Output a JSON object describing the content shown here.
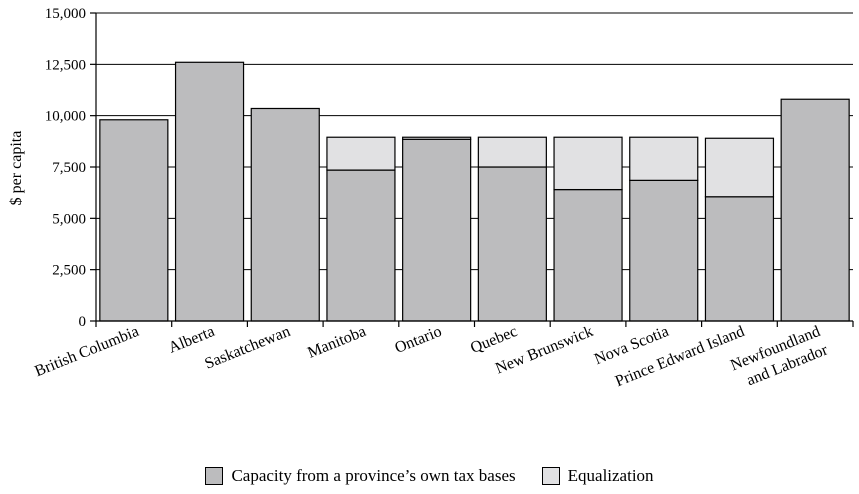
{
  "chart_data": {
    "type": "bar",
    "stacked": true,
    "title": "",
    "xlabel": "",
    "ylabel": "$ per capita",
    "ylim": [
      0,
      15000
    ],
    "yticks": [
      0,
      2500,
      5000,
      7500,
      10000,
      12500,
      15000
    ],
    "ytick_labels": [
      "0",
      "2,500",
      "5,000",
      "7,500",
      "10,000",
      "12,500",
      "15,000"
    ],
    "grid": "horizontal",
    "legend_position": "bottom",
    "categories": [
      "British Columbia",
      "Alberta",
      "Saskatchewan",
      "Manitoba",
      "Ontario",
      "Quebec",
      "New Brunswick",
      "Nova Scotia",
      "Prince Edward Island",
      "Newfoundland and Labrador"
    ],
    "category_label_lines": [
      [
        "British Columbia"
      ],
      [
        "Alberta"
      ],
      [
        "Saskatchewan"
      ],
      [
        "Manitoba"
      ],
      [
        "Ontario"
      ],
      [
        "Quebec"
      ],
      [
        "New Brunswick"
      ],
      [
        "Nova Scotia"
      ],
      [
        "Prince Edward Island"
      ],
      [
        "Newfoundland",
        "and Labrador"
      ]
    ],
    "series": [
      {
        "name": "Capacity from a province’s own tax bases",
        "color": "#bcbcbe",
        "values": [
          9800,
          12600,
          10350,
          7350,
          8850,
          7500,
          6400,
          6850,
          6050,
          10800
        ]
      },
      {
        "name": "Equalization",
        "color": "#e1e1e3",
        "values": [
          0,
          0,
          0,
          1600,
          100,
          1450,
          2550,
          2100,
          2850,
          0
        ]
      }
    ]
  }
}
